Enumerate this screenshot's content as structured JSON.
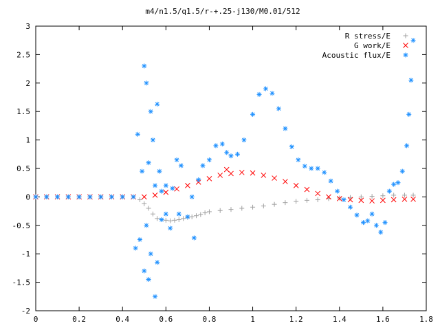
{
  "chart_data": {
    "type": "scatter",
    "title": "m4/n1.5/q1.5/r-+.25-j130/M0.01/512",
    "xlabel": "",
    "ylabel": "",
    "xlim": [
      0,
      1.8
    ],
    "ylim": [
      -2,
      3
    ],
    "x_ticks": [
      "0",
      "0.2",
      "0.4",
      "0.6",
      "0.8",
      "1",
      "1.2",
      "1.4",
      "1.6",
      "1.8"
    ],
    "y_ticks": [
      "-2",
      "-1.5",
      "-1",
      "-0.5",
      "0",
      "0.5",
      "1",
      "1.5",
      "2",
      "2.5",
      "3"
    ],
    "legend_position": "top-right",
    "series": [
      {
        "name": "R stress/E",
        "marker": "+",
        "color": "#a0a0a0",
        "points": [
          [
            0.0,
            0.0
          ],
          [
            0.05,
            0.0
          ],
          [
            0.1,
            0.0
          ],
          [
            0.15,
            0.0
          ],
          [
            0.2,
            0.0
          ],
          [
            0.25,
            0.0
          ],
          [
            0.3,
            0.0
          ],
          [
            0.35,
            0.0
          ],
          [
            0.4,
            0.0
          ],
          [
            0.45,
            0.0
          ],
          [
            0.48,
            -0.05
          ],
          [
            0.5,
            -0.12
          ],
          [
            0.52,
            -0.2
          ],
          [
            0.54,
            -0.3
          ],
          [
            0.56,
            -0.38
          ],
          [
            0.58,
            -0.4
          ],
          [
            0.6,
            -0.41
          ],
          [
            0.62,
            -0.42
          ],
          [
            0.64,
            -0.41
          ],
          [
            0.66,
            -0.4
          ],
          [
            0.68,
            -0.38
          ],
          [
            0.7,
            -0.36
          ],
          [
            0.72,
            -0.35
          ],
          [
            0.74,
            -0.33
          ],
          [
            0.76,
            -0.31
          ],
          [
            0.78,
            -0.28
          ],
          [
            0.8,
            -0.26
          ],
          [
            0.85,
            -0.24
          ],
          [
            0.9,
            -0.22
          ],
          [
            0.95,
            -0.2
          ],
          [
            1.0,
            -0.18
          ],
          [
            1.05,
            -0.16
          ],
          [
            1.1,
            -0.13
          ],
          [
            1.15,
            -0.1
          ],
          [
            1.2,
            -0.08
          ],
          [
            1.25,
            -0.06
          ],
          [
            1.3,
            -0.05
          ],
          [
            1.35,
            -0.03
          ],
          [
            1.4,
            -0.02
          ],
          [
            1.45,
            -0.01
          ],
          [
            1.5,
            0.0
          ],
          [
            1.55,
            0.01
          ],
          [
            1.6,
            0.02
          ],
          [
            1.65,
            0.03
          ],
          [
            1.7,
            0.03
          ],
          [
            1.74,
            0.03
          ]
        ]
      },
      {
        "name": "G work/E",
        "marker": "x",
        "color": "#ff0000",
        "points": [
          [
            0.0,
            0.0
          ],
          [
            0.05,
            0.0
          ],
          [
            0.1,
            0.0
          ],
          [
            0.15,
            0.0
          ],
          [
            0.2,
            0.0
          ],
          [
            0.25,
            0.0
          ],
          [
            0.3,
            0.0
          ],
          [
            0.35,
            0.0
          ],
          [
            0.4,
            0.0
          ],
          [
            0.45,
            0.0
          ],
          [
            0.5,
            0.0
          ],
          [
            0.55,
            0.03
          ],
          [
            0.6,
            0.08
          ],
          [
            0.65,
            0.14
          ],
          [
            0.7,
            0.2
          ],
          [
            0.75,
            0.26
          ],
          [
            0.8,
            0.32
          ],
          [
            0.85,
            0.38
          ],
          [
            0.88,
            0.48
          ],
          [
            0.9,
            0.41
          ],
          [
            0.95,
            0.43
          ],
          [
            1.0,
            0.42
          ],
          [
            1.05,
            0.38
          ],
          [
            1.1,
            0.33
          ],
          [
            1.15,
            0.27
          ],
          [
            1.2,
            0.2
          ],
          [
            1.25,
            0.13
          ],
          [
            1.3,
            0.06
          ],
          [
            1.35,
            0.0
          ],
          [
            1.4,
            -0.03
          ],
          [
            1.45,
            -0.05
          ],
          [
            1.5,
            -0.06
          ],
          [
            1.55,
            -0.07
          ],
          [
            1.6,
            -0.06
          ],
          [
            1.65,
            -0.05
          ],
          [
            1.7,
            -0.04
          ],
          [
            1.74,
            -0.04
          ]
        ]
      },
      {
        "name": "Acoustic flux/E",
        "marker": "*",
        "color": "#1e90ff",
        "points": [
          [
            0.0,
            0.0
          ],
          [
            0.05,
            0.0
          ],
          [
            0.1,
            0.0
          ],
          [
            0.15,
            0.0
          ],
          [
            0.2,
            0.0
          ],
          [
            0.25,
            0.0
          ],
          [
            0.3,
            0.0
          ],
          [
            0.35,
            0.0
          ],
          [
            0.4,
            0.0
          ],
          [
            0.45,
            0.0
          ],
          [
            0.46,
            -0.9
          ],
          [
            0.47,
            1.1
          ],
          [
            0.48,
            -0.75
          ],
          [
            0.49,
            0.45
          ],
          [
            0.5,
            2.3
          ],
          [
            0.5,
            -1.3
          ],
          [
            0.51,
            2.0
          ],
          [
            0.51,
            -0.5
          ],
          [
            0.52,
            -1.45
          ],
          [
            0.52,
            0.6
          ],
          [
            0.53,
            1.5
          ],
          [
            0.53,
            -1.0
          ],
          [
            0.54,
            1.0
          ],
          [
            0.55,
            -1.75
          ],
          [
            0.55,
            0.2
          ],
          [
            0.56,
            1.63
          ],
          [
            0.56,
            -1.15
          ],
          [
            0.57,
            0.45
          ],
          [
            0.58,
            -0.4
          ],
          [
            0.58,
            0.1
          ],
          [
            0.6,
            0.2
          ],
          [
            0.6,
            -0.3
          ],
          [
            0.62,
            -0.55
          ],
          [
            0.63,
            0.15
          ],
          [
            0.65,
            0.65
          ],
          [
            0.66,
            -0.3
          ],
          [
            0.67,
            0.55
          ],
          [
            0.7,
            -0.35
          ],
          [
            0.72,
            0.0
          ],
          [
            0.73,
            -0.72
          ],
          [
            0.75,
            0.3
          ],
          [
            0.77,
            0.55
          ],
          [
            0.8,
            0.65
          ],
          [
            0.83,
            0.9
          ],
          [
            0.86,
            0.93
          ],
          [
            0.88,
            0.78
          ],
          [
            0.9,
            0.72
          ],
          [
            0.93,
            0.75
          ],
          [
            0.96,
            1.0
          ],
          [
            1.0,
            1.45
          ],
          [
            1.03,
            1.8
          ],
          [
            1.06,
            1.9
          ],
          [
            1.09,
            1.82
          ],
          [
            1.12,
            1.55
          ],
          [
            1.15,
            1.2
          ],
          [
            1.18,
            0.88
          ],
          [
            1.21,
            0.65
          ],
          [
            1.24,
            0.54
          ],
          [
            1.27,
            0.5
          ],
          [
            1.3,
            0.5
          ],
          [
            1.33,
            0.43
          ],
          [
            1.36,
            0.28
          ],
          [
            1.39,
            0.1
          ],
          [
            1.42,
            -0.05
          ],
          [
            1.45,
            -0.18
          ],
          [
            1.48,
            -0.32
          ],
          [
            1.51,
            -0.45
          ],
          [
            1.53,
            -0.42
          ],
          [
            1.55,
            -0.3
          ],
          [
            1.57,
            -0.5
          ],
          [
            1.59,
            -0.62
          ],
          [
            1.61,
            -0.45
          ],
          [
            1.63,
            0.1
          ],
          [
            1.65,
            0.22
          ],
          [
            1.67,
            0.25
          ],
          [
            1.69,
            0.45
          ],
          [
            1.71,
            0.9
          ],
          [
            1.72,
            1.45
          ],
          [
            1.73,
            2.05
          ],
          [
            1.74,
            2.75
          ]
        ]
      }
    ]
  }
}
